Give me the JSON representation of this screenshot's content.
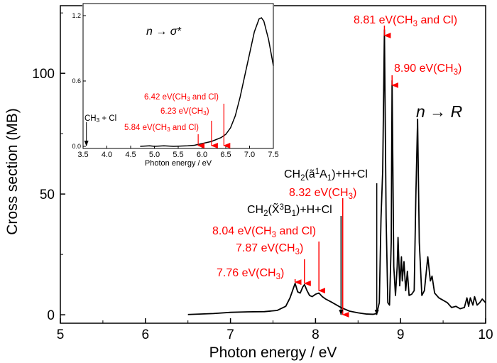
{
  "chart_data": [
    {
      "type": "line",
      "xlabel": "Photon energy / eV",
      "ylabel": "Cross section (MB)",
      "xlim": [
        5,
        10
      ],
      "ylim": [
        -3.5,
        128
      ],
      "xticks": [
        "5",
        "6",
        "7",
        "8",
        "9",
        "10"
      ],
      "yticks": [
        "0",
        "50",
        "100"
      ],
      "grid": false,
      "series": [
        {
          "color": "#000000",
          "x": [
            6.5,
            6.8,
            7.0,
            7.2,
            7.4,
            7.55,
            7.65,
            7.7,
            7.74,
            7.76,
            7.79,
            7.82,
            7.85,
            7.87,
            7.9,
            7.93,
            7.96,
            8.0,
            8.04,
            8.08,
            8.12,
            8.2,
            8.3,
            8.4,
            8.5,
            8.6,
            8.68,
            8.72,
            8.75,
            8.77,
            8.79,
            8.81,
            8.83,
            8.85,
            8.87,
            8.89,
            8.9,
            8.92,
            8.94,
            8.96,
            8.97,
            8.99,
            9.01,
            9.02,
            9.04,
            9.06,
            9.08,
            9.1,
            9.13,
            9.16,
            9.18,
            9.2,
            9.22,
            9.25,
            9.28,
            9.32,
            9.35,
            9.37,
            9.4,
            9.45,
            9.5,
            9.55,
            9.6,
            9.65,
            9.7,
            9.75,
            9.78,
            9.8,
            9.82,
            9.85,
            9.87,
            9.9,
            9.93,
            9.96,
            10.0
          ],
          "y": [
            0.1,
            0.5,
            1.0,
            1.2,
            1.3,
            1.8,
            3.5,
            7.0,
            11.0,
            13.0,
            9.5,
            9.0,
            11.5,
            12.5,
            10.0,
            8.0,
            7.5,
            8.5,
            9.0,
            7.5,
            6.5,
            5.0,
            3.0,
            1.5,
            0.8,
            0.3,
            0.2,
            0.5,
            5.0,
            40.0,
            60.0,
            118.0,
            40.0,
            5.0,
            4.0,
            30.0,
            97.0,
            20.0,
            8.0,
            20.0,
            32.0,
            12.0,
            24.0,
            14.0,
            22.0,
            10.0,
            18.0,
            8.0,
            8.5,
            10.0,
            50.0,
            81.0,
            30.0,
            8.0,
            10.0,
            24.0,
            14.0,
            16.0,
            9.0,
            7.0,
            6.0,
            5.0,
            3.0,
            3.5,
            2.5,
            3.0,
            7.0,
            3.5,
            7.0,
            4.0,
            7.5,
            4.0,
            5.0,
            6.5,
            5.0
          ]
        }
      ],
      "annotations": [
        {
          "text": "7.76 eV(CH3)",
          "x": 7.76,
          "color": "#ff0000"
        },
        {
          "text": "7.87 eV(CH3)",
          "x": 7.87,
          "color": "#ff0000"
        },
        {
          "text": "8.04 eV(CH3 and Cl)",
          "x": 8.04,
          "color": "#ff0000"
        },
        {
          "text": "8.32 eV(CH3)",
          "x": 8.32,
          "color": "#ff0000"
        },
        {
          "text": "8.81 eV(CH3 and Cl)",
          "x": 8.81,
          "color": "#ff0000"
        },
        {
          "text": "8.90 eV(CH3)",
          "x": 8.9,
          "color": "#ff0000"
        },
        {
          "text": "CH2(X̃3B1)+H+Cl",
          "x": 8.3,
          "color": "#000000"
        },
        {
          "text": "CH2(ã1A1)+H+Cl",
          "x": 8.72,
          "color": "#000000"
        },
        {
          "text": "n → R",
          "color": "#000000"
        }
      ]
    },
    {
      "type": "line",
      "xlabel": "Photon energy / eV",
      "ylabel": "",
      "xlim": [
        3.5,
        7.5
      ],
      "ylim": [
        0,
        1.25
      ],
      "xticks": [
        "3.5",
        "4.0",
        "4.5",
        "5.0",
        "5.5",
        "6.0",
        "6.5",
        "7.0",
        "7.5"
      ],
      "yticks": [
        "0.0",
        "0.6",
        "1.2"
      ],
      "grid": false,
      "series": [
        {
          "color": "#000000",
          "x": [
            4.7,
            4.9,
            5.0,
            5.2,
            5.4,
            5.7,
            5.84,
            6.0,
            6.2,
            6.4,
            6.5,
            6.6,
            6.7,
            6.8,
            6.9,
            7.0,
            7.1,
            7.2,
            7.25,
            7.3,
            7.4,
            7.5
          ],
          "y": [
            0.0,
            0.005,
            0.0,
            0.005,
            0.0,
            0.005,
            0.01,
            0.025,
            0.045,
            0.08,
            0.11,
            0.17,
            0.28,
            0.45,
            0.65,
            0.85,
            1.05,
            1.17,
            1.18,
            1.15,
            0.98,
            0.74
          ]
        }
      ],
      "annotations": [
        {
          "text": "n → σ*",
          "color": "#000000"
        },
        {
          "text": "6.42 eV(CH3 and Cl)",
          "x": 6.42,
          "color": "#ff0000"
        },
        {
          "text": "6.23 eV(CH3)",
          "x": 6.23,
          "color": "#ff0000"
        },
        {
          "text": "5.84 eV(CH3 and Cl)",
          "x": 5.84,
          "color": "#ff0000"
        },
        {
          "text": "CH3 + Cl",
          "x": 3.57,
          "color": "#000000"
        }
      ]
    }
  ]
}
